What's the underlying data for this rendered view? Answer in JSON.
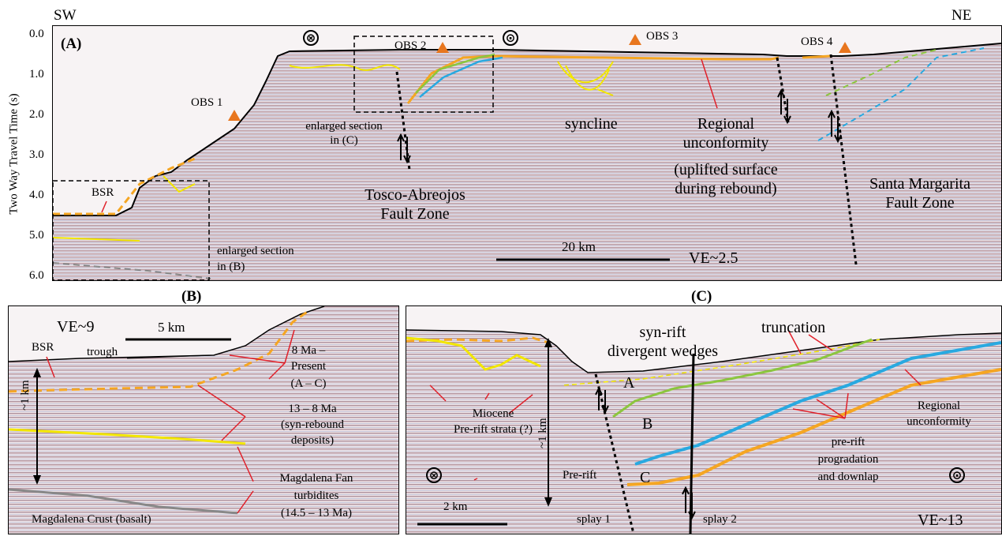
{
  "directions": {
    "sw": "SW",
    "ne": "NE"
  },
  "panel_a": {
    "tag": "(A)",
    "y_axis_label": "Two Way Travel Time (s)",
    "y_ticks": [
      "0.0",
      "1.0",
      "2.0",
      "3.0",
      "4.0",
      "5.0",
      "6.0"
    ],
    "obs": [
      "OBS 1",
      "OBS 2",
      "OBS 3",
      "OBS 4"
    ],
    "labels": {
      "bsr": "BSR",
      "enlarged_c_1": "enlarged section",
      "enlarged_c_2": "in (C)",
      "enlarged_b_1": "enlarged section",
      "enlarged_b_2": "in (B)",
      "tosco_1": "Tosco-Abreojos",
      "tosco_2": "Fault Zone",
      "syncline": "syncline",
      "unconf_1": "Regional",
      "unconf_2": "unconformity",
      "unconf_3": "(uplifted surface",
      "unconf_4": "during rebound)",
      "santa_1": "Santa Margarita",
      "santa_2": "Fault Zone",
      "scale": "20 km",
      "ve": "VE~2.5"
    },
    "symbols": {
      "into_page": "⊗",
      "out_of_page": "⊙"
    }
  },
  "panel_b": {
    "tag": "(B)",
    "labels": {
      "ve": "VE~9",
      "scale": "5 km",
      "bsr": "BSR",
      "trough": "trough",
      "present_1": "8 Ma –",
      "present_2": "Present",
      "present_3": "(A – C)",
      "synrebound_1": "13 – 8 Ma",
      "synrebound_2": "(syn-rebound",
      "synrebound_3": "deposits)",
      "magfan_1": "Magdalena Fan",
      "magfan_2": "turbidites",
      "magfan_3": "(14.5 – 13 Ma)",
      "crust": "Magdalena Crust (basalt)",
      "depth": "~1 km"
    }
  },
  "panel_c": {
    "tag": "(C)",
    "labels": {
      "synrift_1": "syn-rift",
      "synrift_2": "divergent wedges",
      "truncation": "truncation",
      "a": "A",
      "b": "B",
      "c": "C",
      "miocene_1": "Miocene",
      "miocene_2": "Pre-rift strata (?)",
      "prerift": "Pre-rift",
      "depth": "~1 km",
      "unconf_1": "Regional",
      "unconf_2": "unconformity",
      "prograd_1": "pre-rift",
      "prograd_2": "progradation",
      "prograd_3": "and downlap",
      "scale": "2 km",
      "splay1": "splay 1",
      "splay2": "splay 2",
      "ve": "VE~13"
    }
  },
  "colors": {
    "orange": "#f5a623",
    "yellow": "#f2e600",
    "green": "#8cc63f",
    "blue": "#29a9e0",
    "red": "#e0202a",
    "obs": "#e8761e"
  }
}
